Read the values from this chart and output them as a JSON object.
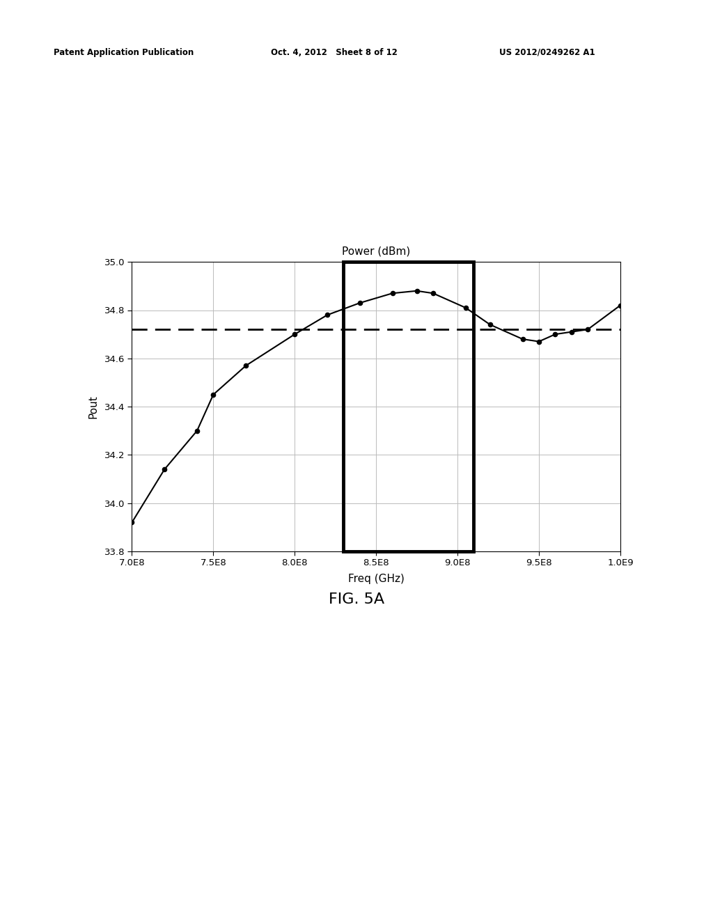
{
  "title": "Power (dBm)",
  "xlabel": "Freq (GHz)",
  "ylabel": "Pout",
  "fig_caption": "FIG. 5A",
  "header_left": "Patent Application Publication",
  "header_center": "Oct. 4, 2012   Sheet 8 of 12",
  "header_right": "US 2012/0249262 A1",
  "xlim": [
    700000000.0,
    1000000000.0
  ],
  "ylim": [
    33.8,
    35.0
  ],
  "xticks": [
    700000000.0,
    750000000.0,
    800000000.0,
    850000000.0,
    900000000.0,
    950000000.0,
    1000000000.0
  ],
  "xtick_labels": [
    "7.0E8",
    "7.5E8",
    "8.0E8",
    "8.5E8",
    "9.0E8",
    "9.5E8",
    "1.0E9"
  ],
  "yticks": [
    33.8,
    34.0,
    34.2,
    34.4,
    34.6,
    34.8,
    35.0
  ],
  "ytick_labels": [
    "33.8",
    "34.0",
    "34.2",
    "34.4",
    "34.6",
    "34.8",
    "35.0"
  ],
  "data_x": [
    700000000.0,
    720000000.0,
    740000000.0,
    750000000.0,
    770000000.0,
    800000000.0,
    820000000.0,
    840000000.0,
    860000000.0,
    875000000.0,
    885000000.0,
    905000000.0,
    920000000.0,
    940000000.0,
    950000000.0,
    960000000.0,
    970000000.0,
    980000000.0,
    1000000000.0
  ],
  "data_y": [
    33.92,
    34.14,
    34.3,
    34.45,
    34.57,
    34.7,
    34.78,
    34.83,
    34.87,
    34.88,
    34.87,
    34.81,
    34.74,
    34.68,
    34.67,
    34.7,
    34.71,
    34.72,
    34.82
  ],
  "dashed_line_y": 34.72,
  "rect_x0": 830000000.0,
  "rect_x1": 910000000.0,
  "rect_y0": 33.8,
  "rect_y1": 35.0,
  "line_color": "#000000",
  "marker_color": "#000000",
  "dashed_color": "#000000",
  "rect_color": "#000000",
  "background_color": "#ffffff",
  "grid_color": "#bbbbbb"
}
